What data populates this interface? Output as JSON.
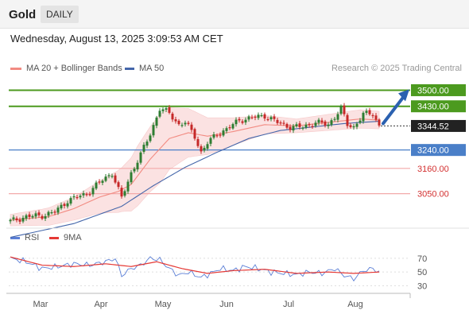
{
  "header": {
    "title": "Gold",
    "period": "DAILY"
  },
  "datetime": "Wednesday, August 13, 2025 3:09:53 AM CET",
  "legend": {
    "ma20": "MA 20 + Bollinger Bands",
    "ma50": "MA 50",
    "rsi": "RSI",
    "rsi_ma": "9MA"
  },
  "credit": "Research © 2025 Trading Central",
  "colors": {
    "up": "#2e7d32",
    "down": "#c62828",
    "ma20": "#f28b82",
    "ma50": "#4466aa",
    "band": "#fbe2e2",
    "resistance": "#4c9a1f",
    "support": "#4a7fc8",
    "target": "#d32f2f",
    "arrow": "#2b61b0",
    "rsi": "#5b7fd6",
    "rsi_ma": "#e53935"
  },
  "chart_data": [
    {
      "type": "candlestick",
      "x_labels": [
        "Mar",
        "Apr",
        "May",
        "Jun",
        "Jul",
        "Aug"
      ],
      "ylim": [
        2900,
        3550
      ],
      "last_price": {
        "value": 3344.52,
        "label": "3344.52"
      },
      "levels": [
        {
          "value": 3500.0,
          "label": "3500.00",
          "kind": "resistance"
        },
        {
          "value": 3430.0,
          "label": "3430.00",
          "kind": "resistance"
        },
        {
          "value": 3240.0,
          "label": "3240.00",
          "kind": "support"
        },
        {
          "value": 3160.0,
          "label": "3160.00",
          "kind": "target"
        },
        {
          "value": 3050.0,
          "label": "3050.00",
          "kind": "target"
        }
      ],
      "price_anchors": [
        [
          0,
          2930
        ],
        [
          5,
          2950
        ],
        [
          10,
          2955
        ],
        [
          14,
          2970
        ],
        [
          18,
          3020
        ],
        [
          24,
          3050
        ],
        [
          29,
          3110
        ],
        [
          32,
          3140
        ],
        [
          35,
          3030
        ],
        [
          38,
          3140
        ],
        [
          41,
          3220
        ],
        [
          44,
          3310
        ],
        [
          47,
          3420
        ],
        [
          50,
          3400
        ],
        [
          53,
          3350
        ],
        [
          55,
          3360
        ],
        [
          58,
          3300
        ],
        [
          60,
          3230
        ],
        [
          62,
          3270
        ],
        [
          65,
          3310
        ],
        [
          68,
          3330
        ],
        [
          72,
          3370
        ],
        [
          76,
          3380
        ],
        [
          80,
          3390
        ],
        [
          84,
          3360
        ],
        [
          88,
          3340
        ],
        [
          92,
          3340
        ],
        [
          96,
          3360
        ],
        [
          100,
          3350
        ],
        [
          104,
          3420
        ],
        [
          106,
          3350
        ],
        [
          108,
          3340
        ],
        [
          111,
          3395
        ],
        [
          114,
          3398
        ],
        [
          116,
          3345
        ]
      ],
      "ma20_anchors": [
        [
          0,
          2935
        ],
        [
          12,
          2950
        ],
        [
          20,
          2985
        ],
        [
          28,
          3035
        ],
        [
          34,
          3060
        ],
        [
          38,
          3090
        ],
        [
          44,
          3200
        ],
        [
          50,
          3290
        ],
        [
          56,
          3315
        ],
        [
          62,
          3300
        ],
        [
          70,
          3320
        ],
        [
          80,
          3350
        ],
        [
          90,
          3345
        ],
        [
          100,
          3360
        ],
        [
          110,
          3375
        ],
        [
          116,
          3370
        ]
      ],
      "ma50_anchors": [
        [
          0,
          2860
        ],
        [
          20,
          2920
        ],
        [
          35,
          2995
        ],
        [
          45,
          3085
        ],
        [
          55,
          3165
        ],
        [
          65,
          3230
        ],
        [
          75,
          3290
        ],
        [
          85,
          3325
        ],
        [
          95,
          3340
        ],
        [
          105,
          3355
        ],
        [
          116,
          3365
        ]
      ],
      "band_width_anchors": [
        [
          0,
          25
        ],
        [
          10,
          35
        ],
        [
          20,
          50
        ],
        [
          28,
          70
        ],
        [
          35,
          95
        ],
        [
          40,
          130
        ],
        [
          47,
          150
        ],
        [
          55,
          110
        ],
        [
          62,
          80
        ],
        [
          70,
          60
        ],
        [
          80,
          40
        ],
        [
          90,
          30
        ],
        [
          100,
          35
        ],
        [
          110,
          40
        ],
        [
          116,
          38
        ]
      ]
    },
    {
      "type": "line",
      "y_ticks": [
        70,
        50,
        30
      ],
      "ylim": [
        20,
        85
      ],
      "series": [
        {
          "name": "RSI",
          "anchors": [
            [
              0,
              70
            ],
            [
              5,
              65
            ],
            [
              10,
              55
            ],
            [
              15,
              58
            ],
            [
              20,
              62
            ],
            [
              25,
              60
            ],
            [
              30,
              65
            ],
            [
              33,
              70
            ],
            [
              35,
              45
            ],
            [
              38,
              55
            ],
            [
              41,
              60
            ],
            [
              44,
              70
            ],
            [
              47,
              68
            ],
            [
              50,
              55
            ],
            [
              53,
              45
            ],
            [
              56,
              50
            ],
            [
              60,
              42
            ],
            [
              63,
              48
            ],
            [
              66,
              55
            ],
            [
              70,
              52
            ],
            [
              74,
              58
            ],
            [
              78,
              55
            ],
            [
              82,
              50
            ],
            [
              86,
              48
            ],
            [
              90,
              46
            ],
            [
              94,
              50
            ],
            [
              98,
              48
            ],
            [
              102,
              55
            ],
            [
              105,
              45
            ],
            [
              108,
              40
            ],
            [
              111,
              52
            ],
            [
              114,
              55
            ],
            [
              116,
              50
            ]
          ]
        },
        {
          "name": "9MA",
          "anchors": [
            [
              0,
              72
            ],
            [
              10,
              60
            ],
            [
              20,
              58
            ],
            [
              30,
              62
            ],
            [
              38,
              58
            ],
            [
              46,
              65
            ],
            [
              54,
              55
            ],
            [
              62,
              48
            ],
            [
              70,
              52
            ],
            [
              80,
              54
            ],
            [
              90,
              48
            ],
            [
              100,
              50
            ],
            [
              108,
              48
            ],
            [
              116,
              50
            ]
          ]
        }
      ]
    }
  ]
}
